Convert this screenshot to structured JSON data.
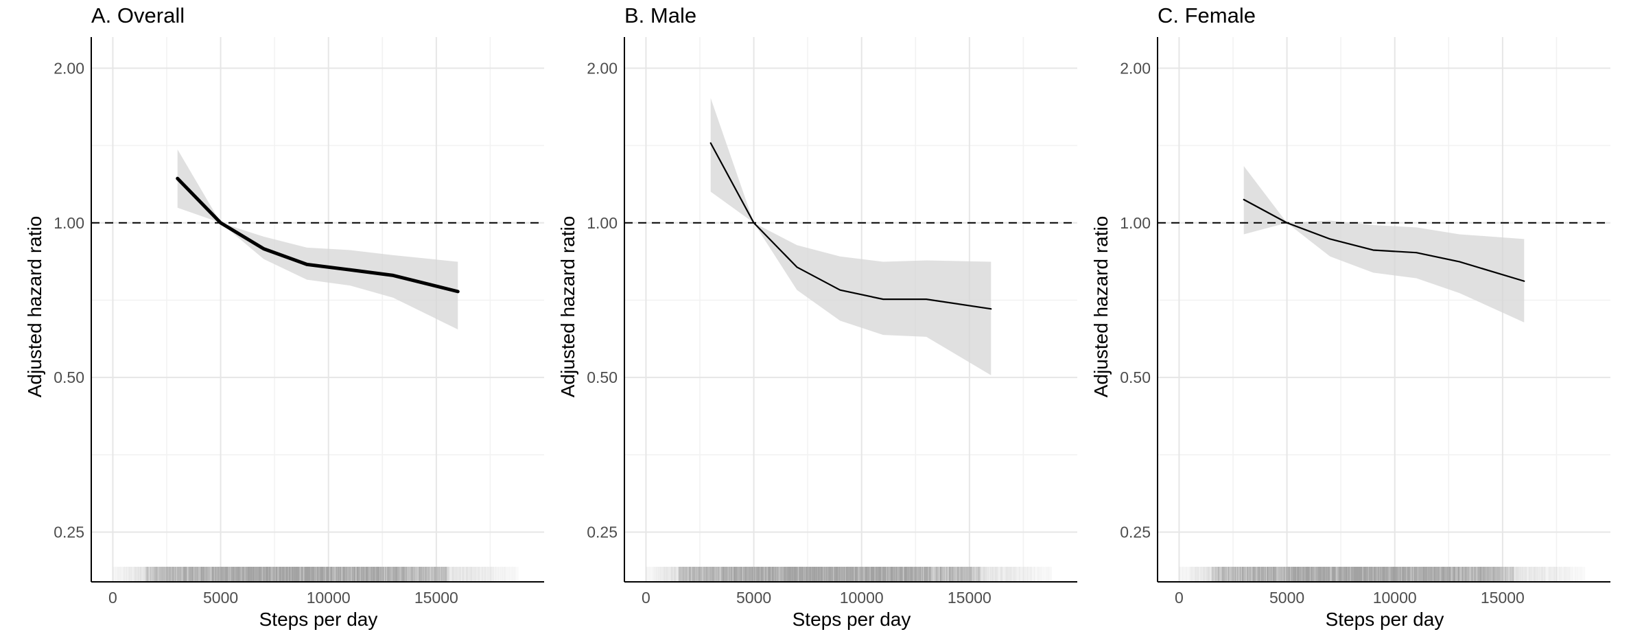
{
  "chart_data": [
    {
      "type": "line",
      "title": "A. Overall",
      "xlabel": "Steps per day",
      "ylabel": "Adjusted hazard ratio",
      "y_scale": "log",
      "xlim": [
        -1000,
        20000
      ],
      "ylim": [
        0.2,
        2.3
      ],
      "x_ticks": [
        0,
        5000,
        10000,
        15000
      ],
      "x_tick_labels": [
        "0",
        "5000",
        "10000",
        "15000"
      ],
      "y_ticks": [
        0.25,
        0.5,
        1.0,
        2.0
      ],
      "y_tick_labels": [
        "0.25",
        "0.50",
        "1.00",
        "2.00"
      ],
      "reference_line": 1.0,
      "line_weight": "thick",
      "grid": true,
      "x": [
        3000,
        5000,
        7000,
        9000,
        11000,
        13000,
        16000
      ],
      "hazard_ratio": [
        1.22,
        1.0,
        0.89,
        0.83,
        0.81,
        0.79,
        0.735
      ],
      "ci_lower": [
        1.07,
        1.0,
        0.85,
        0.775,
        0.755,
        0.715,
        0.62
      ],
      "ci_upper": [
        1.39,
        1.0,
        0.94,
        0.895,
        0.885,
        0.865,
        0.84
      ],
      "rug": {
        "min": 0,
        "max": 18800,
        "dense_from": 1500,
        "dense_to": 15500
      }
    },
    {
      "type": "line",
      "title": "B. Male",
      "xlabel": "Steps per day",
      "ylabel": "Adjusted hazard ratio",
      "y_scale": "log",
      "xlim": [
        -1000,
        20000
      ],
      "ylim": [
        0.2,
        2.3
      ],
      "x_ticks": [
        0,
        5000,
        10000,
        15000
      ],
      "x_tick_labels": [
        "0",
        "5000",
        "10000",
        "15000"
      ],
      "y_ticks": [
        0.25,
        0.5,
        1.0,
        2.0
      ],
      "y_tick_labels": [
        "0.25",
        "0.50",
        "1.00",
        "2.00"
      ],
      "reference_line": 1.0,
      "line_weight": "thin",
      "grid": true,
      "x": [
        3000,
        5000,
        7000,
        9000,
        11000,
        13000,
        16000
      ],
      "hazard_ratio": [
        1.43,
        1.0,
        0.82,
        0.74,
        0.71,
        0.71,
        0.68
      ],
      "ci_lower": [
        1.15,
        1.0,
        0.74,
        0.645,
        0.605,
        0.6,
        0.505
      ],
      "ci_upper": [
        1.75,
        1.0,
        0.905,
        0.86,
        0.84,
        0.845,
        0.84
      ]
    },
    {
      "type": "line",
      "title": "C. Female",
      "xlabel": "Steps per day",
      "ylabel": "Adjusted hazard ratio",
      "y_scale": "log",
      "xlim": [
        -1000,
        20000
      ],
      "ylim": [
        0.2,
        2.3
      ],
      "x_ticks": [
        0,
        5000,
        10000,
        15000
      ],
      "x_tick_labels": [
        "0",
        "5000",
        "10000",
        "15000"
      ],
      "y_ticks": [
        0.25,
        0.5,
        1.0,
        2.0
      ],
      "y_tick_labels": [
        "0.25",
        "0.50",
        "1.00",
        "2.00"
      ],
      "reference_line": 1.0,
      "line_weight": "thin",
      "grid": true,
      "x": [
        3000,
        5000,
        7000,
        9000,
        11000,
        13000,
        16000
      ],
      "hazard_ratio": [
        1.11,
        1.0,
        0.93,
        0.885,
        0.875,
        0.84,
        0.77
      ],
      "ci_lower": [
        0.95,
        1.0,
        0.86,
        0.8,
        0.78,
        0.73,
        0.64
      ],
      "ci_upper": [
        1.29,
        1.0,
        1.01,
        0.99,
        0.98,
        0.95,
        0.93
      ]
    }
  ]
}
